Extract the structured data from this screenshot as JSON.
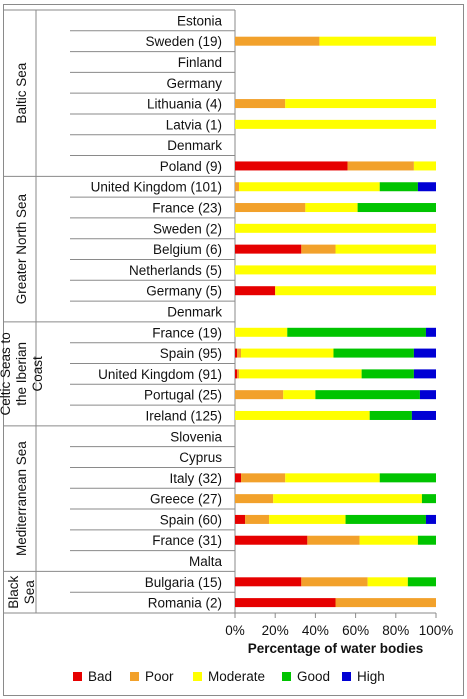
{
  "chart_data": {
    "type": "bar",
    "orientation": "horizontal-stacked",
    "xlabel": "Percentage of water bodies",
    "xlim": [
      0,
      100
    ],
    "x_ticks": [
      "0%",
      "20%",
      "40%",
      "60%",
      "80%",
      "100%"
    ],
    "legend_position": "bottom",
    "series": [
      {
        "name": "Bad",
        "color": "#e60000"
      },
      {
        "name": "Poor",
        "color": "#f2a12b"
      },
      {
        "name": "Moderate",
        "color": "#ffff00"
      },
      {
        "name": "Good",
        "color": "#00c400"
      },
      {
        "name": "High",
        "color": "#0000d4"
      }
    ],
    "groups": [
      {
        "name": "Baltic Sea",
        "label_lines": [
          "Baltic Sea"
        ],
        "rows": [
          {
            "label": "Estonia",
            "values": [
              0,
              0,
              0,
              0,
              0
            ]
          },
          {
            "label": "Sweden (19)",
            "values": [
              0,
              42,
              58,
              0,
              0
            ]
          },
          {
            "label": "Finland",
            "values": [
              0,
              0,
              0,
              0,
              0
            ]
          },
          {
            "label": "Germany",
            "values": [
              0,
              0,
              0,
              0,
              0
            ]
          },
          {
            "label": "Lithuania (4)",
            "values": [
              0,
              25,
              75,
              0,
              0
            ]
          },
          {
            "label": "Latvia (1)",
            "values": [
              0,
              0,
              100,
              0,
              0
            ]
          },
          {
            "label": "Denmark",
            "values": [
              0,
              0,
              0,
              0,
              0
            ]
          },
          {
            "label": "Poland (9)",
            "values": [
              56,
              33,
              11,
              0,
              0
            ]
          }
        ]
      },
      {
        "name": "Greater North Sea",
        "label_lines": [
          "Greater North Sea"
        ],
        "rows": [
          {
            "label": "United Kingdom (101)",
            "values": [
              0,
              2,
              70,
              19,
              9
            ]
          },
          {
            "label": "France (23)",
            "values": [
              0,
              35,
              26,
              39,
              0
            ]
          },
          {
            "label": "Sweden (2)",
            "values": [
              0,
              0,
              100,
              0,
              0
            ]
          },
          {
            "label": "Belgium (6)",
            "values": [
              33,
              17,
              50,
              0,
              0
            ]
          },
          {
            "label": "Netherlands (5)",
            "values": [
              0,
              0,
              100,
              0,
              0
            ]
          },
          {
            "label": "Germany (5)",
            "values": [
              20,
              0,
              80,
              0,
              0
            ]
          },
          {
            "label": "Denmark",
            "values": [
              0,
              0,
              0,
              0,
              0
            ]
          }
        ]
      },
      {
        "name": "Celtic Seas to the Iberian Coast",
        "label_lines": [
          "Celtic Seas to",
          "the Iberian",
          "Coast"
        ],
        "rows": [
          {
            "label": "France (19)",
            "values": [
              0,
              0,
              26,
              69,
              5
            ]
          },
          {
            "label": "Spain (95)",
            "values": [
              1,
              2,
              46,
              40,
              11
            ]
          },
          {
            "label": "United Kingdom (91)",
            "values": [
              1,
              1,
              61,
              26,
              11
            ]
          },
          {
            "label": "Portugal (25)",
            "values": [
              0,
              24,
              16,
              52,
              8
            ]
          },
          {
            "label": "Ireland (125)",
            "values": [
              0,
              0,
              67,
              21,
              12
            ]
          }
        ]
      },
      {
        "name": "Mediterranean Sea",
        "label_lines": [
          "Mediterranean Sea"
        ],
        "rows": [
          {
            "label": "Slovenia",
            "values": [
              0,
              0,
              0,
              0,
              0
            ]
          },
          {
            "label": "Cyprus",
            "values": [
              0,
              0,
              0,
              0,
              0
            ]
          },
          {
            "label": "Italy (32)",
            "values": [
              3,
              22,
              47,
              28,
              0
            ]
          },
          {
            "label": "Greece (27)",
            "values": [
              0,
              19,
              74,
              7,
              0
            ]
          },
          {
            "label": "Spain (60)",
            "values": [
              5,
              12,
              38,
              40,
              5
            ]
          },
          {
            "label": "France (31)",
            "values": [
              36,
              26,
              29,
              9,
              0
            ]
          },
          {
            "label": "Malta",
            "values": [
              0,
              0,
              0,
              0,
              0
            ]
          }
        ]
      },
      {
        "name": "Black Sea",
        "label_lines": [
          "Black",
          "Sea"
        ],
        "rows": [
          {
            "label": "Bulgaria (15)",
            "values": [
              33,
              33,
              20,
              14,
              0
            ]
          },
          {
            "label": "Romania (2)",
            "values": [
              50,
              50,
              0,
              0,
              0
            ]
          }
        ]
      }
    ]
  }
}
